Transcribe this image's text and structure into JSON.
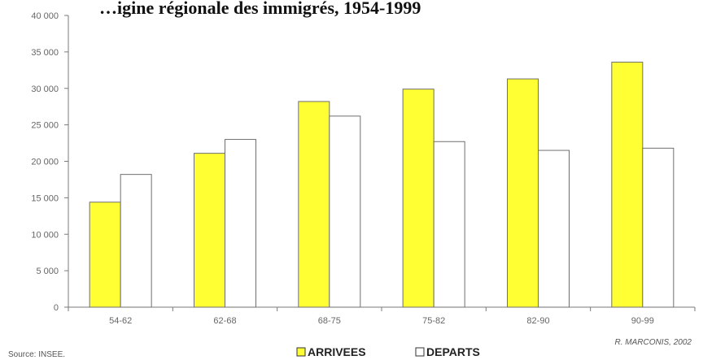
{
  "chart_data": {
    "type": "bar",
    "title": "…igine régionale des immigrés, 1954-1999",
    "categories": [
      "54-62",
      "62-68",
      "68-75",
      "75-82",
      "82-90",
      "90-99"
    ],
    "series": [
      {
        "name": "ARRIVEES",
        "color": "#ffff33",
        "values": [
          14400,
          21100,
          28200,
          29900,
          31300,
          33600
        ]
      },
      {
        "name": "DEPARTS",
        "color": "#ffffff",
        "values": [
          18200,
          23000,
          26200,
          22700,
          21500,
          21800
        ]
      }
    ],
    "ylim": [
      0,
      40000
    ],
    "yticks": [
      0,
      5000,
      10000,
      15000,
      20000,
      25000,
      30000,
      35000,
      40000
    ],
    "ytick_labels": [
      "0",
      "5 000",
      "10 000",
      "15 000",
      "20 000",
      "25 000",
      "30 000",
      "35 000",
      "40 000"
    ],
    "grid": false,
    "legend_position": "bottom-center",
    "source": "Source: INSEE.",
    "credit": "R. MARCONIS, 2002"
  }
}
